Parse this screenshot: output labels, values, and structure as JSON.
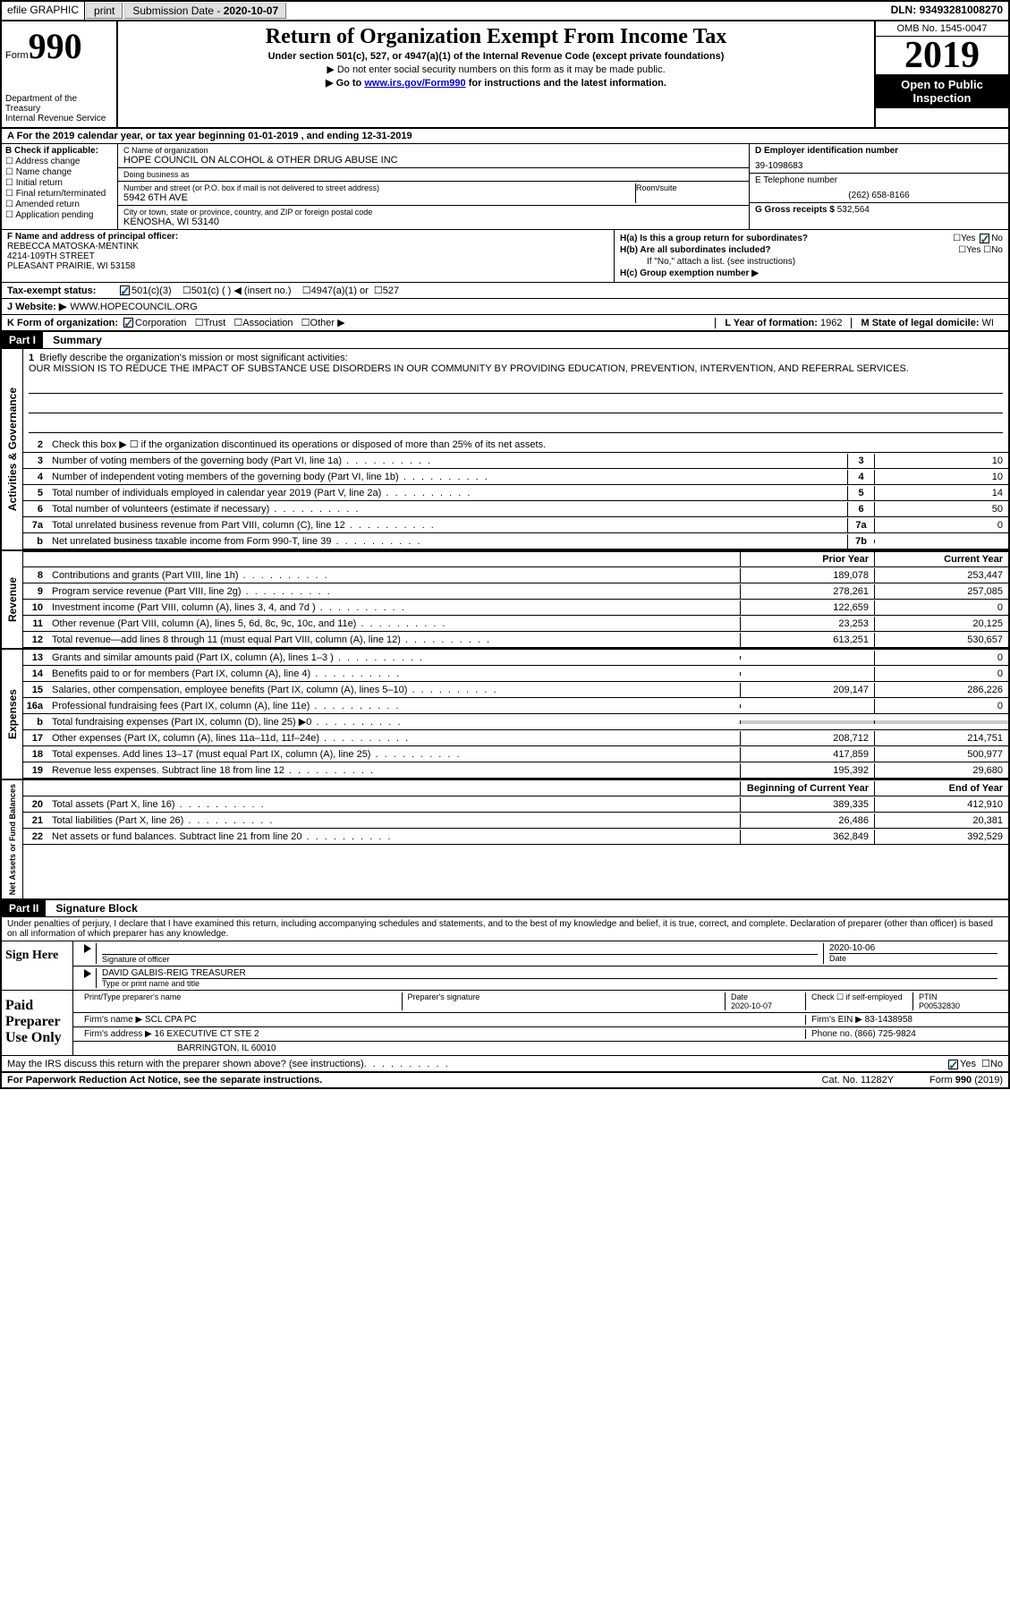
{
  "topbar": {
    "efile": "efile GRAPHIC",
    "print": "print",
    "submission_label": "Submission Date - ",
    "submission_date": "2020-10-07",
    "dln_label": "DLN: ",
    "dln": "93493281008270"
  },
  "header": {
    "form_label": "Form",
    "form_number": "990",
    "dept": "Department of the Treasury",
    "irs": "Internal Revenue Service",
    "title": "Return of Organization Exempt From Income Tax",
    "subtitle": "Under section 501(c), 527, or 4947(a)(1) of the Internal Revenue Code (except private foundations)",
    "note1": "▶ Do not enter social security numbers on this form as it may be made public.",
    "note2_pre": "▶ Go to ",
    "note2_link": "www.irs.gov/Form990",
    "note2_post": " for instructions and the latest information.",
    "omb": "OMB No. 1545-0047",
    "year": "2019",
    "inspection": "Open to Public Inspection"
  },
  "line_a": "For the 2019 calendar year, or tax year beginning 01-01-2019    , and ending 12-31-2019",
  "section_b": {
    "label": "B Check if applicable:",
    "items": [
      "Address change",
      "Name change",
      "Initial return",
      "Final return/terminated",
      "Amended return",
      "Application pending"
    ]
  },
  "section_c": {
    "name_label": "C Name of organization",
    "name": "HOPE COUNCIL ON ALCOHOL & OTHER DRUG ABUSE INC",
    "dba_label": "Doing business as",
    "dba": "",
    "addr_label": "Number and street (or P.O. box if mail is not delivered to street address)",
    "addr": "5942 6TH AVE",
    "room_label": "Room/suite",
    "room": "",
    "city_label": "City or town, state or province, country, and ZIP or foreign postal code",
    "city": "KENOSHA, WI  53140"
  },
  "section_d": {
    "ein_label": "D Employer identification number",
    "ein": "39-1098683",
    "phone_label": "E Telephone number",
    "phone": "(262) 658-8166",
    "gross_label": "G Gross receipts $ ",
    "gross": "532,564"
  },
  "section_f": {
    "label": "F  Name and address of principal officer:",
    "name": "REBECCA MATOSKA-MENTINK",
    "addr": "4214-109TH STREET",
    "city": "PLEASANT PRAIRIE, WI  53158"
  },
  "section_h": {
    "ha_label": "H(a)  Is this a group return for subordinates?",
    "hb_label": "H(b)  Are all subordinates included?",
    "h_note": "If \"No,\" attach a list. (see instructions)",
    "hc_label": "H(c)  Group exemption number ▶",
    "yes": "Yes",
    "no": "No"
  },
  "tax_exempt": {
    "label": "Tax-exempt status:",
    "opt1": "501(c)(3)",
    "opt2": "501(c) (   ) ◀ (insert no.)",
    "opt3": "4947(a)(1) or",
    "opt4": "527"
  },
  "website": {
    "label": "J   Website: ▶",
    "value": "WWW.HOPECOUNCIL.ORG"
  },
  "line_k": {
    "label": "K Form of organization:",
    "opts": [
      "Corporation",
      "Trust",
      "Association",
      "Other ▶"
    ],
    "l_label": "L Year of formation: ",
    "l_val": "1962",
    "m_label": "M State of legal domicile: ",
    "m_val": "WI"
  },
  "part1": {
    "header": "Part I",
    "title": "Summary",
    "q1": "Briefly describe the organization's mission or most significant activities:",
    "mission": "OUR MISSION IS TO REDUCE THE IMPACT OF SUBSTANCE USE DISORDERS IN OUR COMMUNITY BY PROVIDING EDUCATION, PREVENTION, INTERVENTION, AND REFERRAL SERVICES.",
    "q2": "Check this box ▶ ☐  if the organization discontinued its operations or disposed of more than 25% of its net assets."
  },
  "side_labels": {
    "ag": "Activities & Governance",
    "rev": "Revenue",
    "exp": "Expenses",
    "na": "Net Assets or Fund Balances"
  },
  "governance_rows": [
    {
      "n": "3",
      "d": "Number of voting members of the governing body (Part VI, line 1a)",
      "box": "3",
      "v": "10"
    },
    {
      "n": "4",
      "d": "Number of independent voting members of the governing body (Part VI, line 1b)",
      "box": "4",
      "v": "10"
    },
    {
      "n": "5",
      "d": "Total number of individuals employed in calendar year 2019 (Part V, line 2a)",
      "box": "5",
      "v": "14"
    },
    {
      "n": "6",
      "d": "Total number of volunteers (estimate if necessary)",
      "box": "6",
      "v": "50"
    },
    {
      "n": "7a",
      "d": "Total unrelated business revenue from Part VIII, column (C), line 12",
      "box": "7a",
      "v": "0"
    },
    {
      "n": "b",
      "d": "Net unrelated business taxable income from Form 990-T, line 39",
      "box": "7b",
      "v": ""
    }
  ],
  "col_headers": {
    "prior": "Prior Year",
    "current": "Current Year",
    "begin": "Beginning of Current Year",
    "end": "End of Year"
  },
  "revenue_rows": [
    {
      "n": "8",
      "d": "Contributions and grants (Part VIII, line 1h)",
      "p": "189,078",
      "c": "253,447"
    },
    {
      "n": "9",
      "d": "Program service revenue (Part VIII, line 2g)",
      "p": "278,261",
      "c": "257,085"
    },
    {
      "n": "10",
      "d": "Investment income (Part VIII, column (A), lines 3, 4, and 7d )",
      "p": "122,659",
      "c": "0"
    },
    {
      "n": "11",
      "d": "Other revenue (Part VIII, column (A), lines 5, 6d, 8c, 9c, 10c, and 11e)",
      "p": "23,253",
      "c": "20,125"
    },
    {
      "n": "12",
      "d": "Total revenue—add lines 8 through 11 (must equal Part VIII, column (A), line 12)",
      "p": "613,251",
      "c": "530,657"
    }
  ],
  "expense_rows": [
    {
      "n": "13",
      "d": "Grants and similar amounts paid (Part IX, column (A), lines 1–3 )",
      "p": "",
      "c": "0"
    },
    {
      "n": "14",
      "d": "Benefits paid to or for members (Part IX, column (A), line 4)",
      "p": "",
      "c": "0"
    },
    {
      "n": "15",
      "d": "Salaries, other compensation, employee benefits (Part IX, column (A), lines 5–10)",
      "p": "209,147",
      "c": "286,226"
    },
    {
      "n": "16a",
      "d": "Professional fundraising fees (Part IX, column (A), line 11e)",
      "p": "",
      "c": "0"
    },
    {
      "n": "b",
      "d": "Total fundraising expenses (Part IX, column (D), line 25) ▶0",
      "p": "shaded",
      "c": "shaded"
    },
    {
      "n": "17",
      "d": "Other expenses (Part IX, column (A), lines 11a–11d, 11f–24e)",
      "p": "208,712",
      "c": "214,751"
    },
    {
      "n": "18",
      "d": "Total expenses. Add lines 13–17 (must equal Part IX, column (A), line 25)",
      "p": "417,859",
      "c": "500,977"
    },
    {
      "n": "19",
      "d": "Revenue less expenses. Subtract line 18 from line 12",
      "p": "195,392",
      "c": "29,680"
    }
  ],
  "netassets_rows": [
    {
      "n": "20",
      "d": "Total assets (Part X, line 16)",
      "p": "389,335",
      "c": "412,910"
    },
    {
      "n": "21",
      "d": "Total liabilities (Part X, line 26)",
      "p": "26,486",
      "c": "20,381"
    },
    {
      "n": "22",
      "d": "Net assets or fund balances. Subtract line 21 from line 20",
      "p": "362,849",
      "c": "392,529"
    }
  ],
  "part2": {
    "header": "Part II",
    "title": "Signature Block",
    "penalty": "Under penalties of perjury, I declare that I have examined this return, including accompanying schedules and statements, and to the best of my knowledge and belief, it is true, correct, and complete. Declaration of preparer (other than officer) is based on all information of which preparer has any knowledge."
  },
  "sign": {
    "label": "Sign Here",
    "sig_label": "Signature of officer",
    "date_label": "Date",
    "date": "2020-10-06",
    "name": "DAVID GALBIS-REIG  TREASURER",
    "name_label": "Type or print name and title"
  },
  "preparer": {
    "label": "Paid Preparer Use Only",
    "h1": "Print/Type preparer's name",
    "h2": "Preparer's signature",
    "h3": "Date",
    "h3v": "2020-10-07",
    "h4": "Check ☐  if self-employed",
    "h5": "PTIN",
    "h5v": "P00532830",
    "firm_label": "Firm's name    ▶",
    "firm": "SCL CPA PC",
    "ein_label": "Firm's EIN ▶",
    "ein": "83-1438958",
    "addr_label": "Firm's address ▶",
    "addr1": "16 EXECUTIVE CT STE 2",
    "addr2": "BARRINGTON, IL  60010",
    "phone_label": "Phone no. ",
    "phone": "(866) 725-9824"
  },
  "discuss": {
    "q": "May the IRS discuss this return with the preparer shown above? (see instructions)",
    "yes": "Yes",
    "no": "No"
  },
  "footer": {
    "left": "For Paperwork Reduction Act Notice, see the separate instructions.",
    "mid": "Cat. No. 11282Y",
    "right": "Form 990 (2019)"
  }
}
